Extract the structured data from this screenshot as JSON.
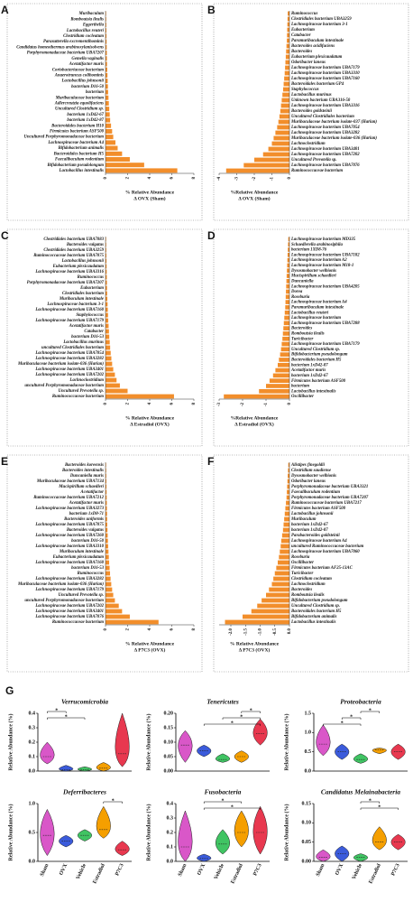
{
  "chart_data": [
    {
      "type": "bar",
      "panel_label": "A",
      "color": "#f28e2b",
      "categories": [
        "Muribaculum",
        "Romboutsia ilealis",
        "Eggerthella",
        "Lactobacillus reuteri",
        "Clostridium cocleatum",
        "Parasutterella excrementihominis",
        "Candidatus homeothermus arabinoxylanisolvens",
        "Porphyromonadaceae bacterium UBA7207",
        "Gemella vaginalis",
        "Acetatifactor muris",
        "Coriobacteriaceae bacterium",
        "Anaerotruncus colihominis",
        "Lactobacillus johnsonii",
        "bacterium D16-50",
        "bacterium",
        "Muribaculaceae bacterium",
        "Adlercreutzia equolifaciens",
        "Uncultured Clostridium sp.",
        "bacterium 1xD42-67",
        "bacterium 1xD42-87",
        "Bacteroidales bacterium H10",
        "Firmicutes bacterium ASF500",
        "Uncultured Porphyromonadaceae bacterium",
        "Lachnospiraceae bacterium A4",
        "Bifidobacterium animalis",
        "Bacteroidales bacterium H5",
        "Faecalibaculum rodentium",
        "Bifidobacterium pseudolongum",
        "Lactobacillus intestinalis"
      ],
      "values": [
        0.05,
        0.06,
        0.07,
        0.08,
        0.09,
        0.1,
        0.11,
        0.12,
        0.13,
        0.14,
        0.16,
        0.18,
        0.2,
        0.22,
        0.24,
        0.27,
        0.3,
        0.34,
        0.38,
        0.42,
        0.5,
        0.6,
        0.7,
        0.9,
        1.1,
        1.5,
        2.2,
        3.5,
        6.5
      ],
      "xlim": [
        0,
        8
      ],
      "xticks": [
        0,
        2,
        4,
        6,
        8
      ],
      "xlabel_lines": [
        "% Relative Abundance",
        "Δ OVX (Sham)"
      ]
    },
    {
      "type": "bar",
      "panel_label": "B",
      "color": "#f28e2b",
      "categories": [
        "Ruminococcus",
        "Clostridiales bacterium UBA3259",
        "Lachnospiraceae bacterium 3-1",
        "Eubacterium",
        "Catabacter",
        "Paramuribaculum intestinale",
        "Bacteroides acidifaciens",
        "Bacteroides",
        "Eubacterium plexicaudatum",
        "Odoribacter laneus",
        "Lachnospiraceae bacterium UBA7179",
        "Lachnospiraceae bacterium UBA3310",
        "Lachnospiraceae bacterium UBA7160",
        "Bacteroidales bacterium GP4",
        "Staphylococcus",
        "Lactobacillus murinus",
        "Unknown bacterium UBA316-50",
        "Lachnospiraceae bacterium UBA3316",
        "Bacteroides goldsteinii",
        "Uncultured Clostridiales bacterium",
        "Muribaculaceae bacterium isolate-037 (Harlan)",
        "Lachnospiraceae bacterium UBA7054",
        "Lachnospiraceae bacterium UBA3282",
        "Muribaculaceae bacterium isolate-036 (Harlan)",
        "Lachnoclostridium",
        "Lachnospiraceae bacterium UBA3401",
        "Lachnospiraceae bacterium UBA7202",
        "Uncultured Prevotella sp.",
        "Lachnospiraceae bacterium UBA7076",
        "Ruminococcaceae bacterium"
      ],
      "values": [
        -0.1,
        -0.11,
        -0.12,
        -0.13,
        -0.14,
        -0.15,
        -0.17,
        -0.19,
        -0.21,
        -0.23,
        -0.25,
        -0.27,
        -0.3,
        -0.33,
        -0.36,
        -0.4,
        -0.44,
        -0.48,
        -0.52,
        -0.57,
        -0.63,
        -0.7,
        -0.8,
        -0.9,
        -1.0,
        -1.2,
        -1.5,
        -2.0,
        -2.6,
        -3.6
      ],
      "xlim": [
        -4,
        0
      ],
      "xticks": [
        -4,
        -3,
        -2,
        -1,
        0
      ],
      "xlabel_lines": [
        "%Relative Abundance",
        "Δ OVX (Sham)"
      ]
    },
    {
      "type": "bar",
      "panel_label": "C",
      "color": "#f28e2b",
      "categories": [
        "Clostridiales bacterium UBA7083",
        "Bacteroides vulgatus",
        "Clostridiales bacterium UBA3259",
        "Ruminococcaceae bacterium UBA7075",
        "Lactobacillus johnsonii",
        "Eubacterium plexicaudatum",
        "Lachnospiraceae bacterium UBA3316",
        "Ruminococcus",
        "Porphyromonadaceae bacterium UBA7207",
        "Eubacterium",
        "Clostridiales bacterium",
        "Muribaculum intestinale",
        "Lachnospiraceae bacterium 3-1",
        "Lachnospiraceae bacterium UBA7160",
        "Staphylococcus",
        "Lachnospiraceae bacterium UBA7179",
        "Acetatifactor muris",
        "Catabacter",
        "bacterium D16-53",
        "Lactobacillus murinus",
        "uncultured Clostridiales bacterium",
        "Lachnospiraceae bacterium UBA7054",
        "Lachnospiraceae bacterium UBA3282",
        "Muribaculaceae bacterium isolate-036 (Harlan)",
        "Lachnospiraceae bacterium UBA3401",
        "Lachnospiraceae bacterium UBA7202",
        "Lachnoclostridium",
        "uncultured Porphyromonadaceae bacterium",
        "Uncultured Prevotella sp.",
        "Ruminococcaceae bacterium"
      ],
      "values": [
        0.05,
        0.06,
        0.07,
        0.08,
        0.09,
        0.1,
        0.11,
        0.12,
        0.13,
        0.14,
        0.15,
        0.17,
        0.19,
        0.21,
        0.23,
        0.25,
        0.28,
        0.31,
        0.34,
        0.38,
        0.42,
        0.47,
        0.53,
        0.6,
        0.7,
        0.85,
        1.0,
        1.3,
        2.0,
        6.2
      ],
      "xlim": [
        0,
        8
      ],
      "xticks": [
        0,
        2,
        4,
        6,
        8
      ],
      "xlabel_lines": [
        "% Relative Abundance",
        "Δ Estradiol (OVX)"
      ]
    },
    {
      "type": "bar",
      "panel_label": "D",
      "color": "#f28e2b",
      "categories": [
        "Lachnospiraceae bacterium MD335",
        "Schaedlerella arabinosiphila",
        "bacterium 1XD8-76",
        "Lachnospiraceae bacterium UBA7182",
        "Lachnospiraceae bacterium A2",
        "Lachnospiraceae bacterium M18-1",
        "Dysosmobacter welbionis",
        "Mucispirillum schaedleri",
        "Duncaniella",
        "Lachnospiraceae bacterium UBA4205",
        "Dorea",
        "Roseburia",
        "Lachnospiraceae bacterium A4",
        "Paramuribaculum intestinale",
        "Lactobacillus reuteri",
        "Lachnospiraceae bacterium",
        "Lachnospiraceae bacterium UBA7288",
        "Bacteroides",
        "Romboutsia ilealis",
        "Turicibacter",
        "Lachnospiraceae bacterium UBA7179",
        "Uncultured Clostridium sp.",
        "Bifidobacterium pseudolongum",
        "Bacteroidales bacterium H5",
        "bacterium 1xD42-87",
        "Acetatifactor muris",
        "bacterium 1xD42-67",
        "Firmicutes bacterium ASF500",
        "bacterium",
        "Lactobacillus intestinalis",
        "Oscillibacter"
      ],
      "values": [
        -0.05,
        -0.06,
        -0.07,
        -0.08,
        -0.09,
        -0.1,
        -0.11,
        -0.12,
        -0.13,
        -0.14,
        -0.15,
        -0.16,
        -0.17,
        -0.18,
        -0.2,
        -0.22,
        -0.24,
        -0.26,
        -0.28,
        -0.3,
        -0.33,
        -0.36,
        -0.4,
        -0.45,
        -0.5,
        -0.6,
        -0.7,
        -0.85,
        -1.0,
        -1.3,
        -2.8
      ],
      "xlim": [
        -3,
        0
      ],
      "xticks": [
        -3,
        -2,
        -1,
        0
      ],
      "xlabel_lines": [
        "%Relative Abundance",
        "Δ Estradiol (OVX)"
      ]
    },
    {
      "type": "bar",
      "panel_label": "E",
      "color": "#f28e2b",
      "categories": [
        "Bacteroides koreensis",
        "Bacteroides intestinalis",
        "Duncaniella muris",
        "Muribaculaceae bacterium UBA7134",
        "Mucispirillum schaedleri",
        "Acetatifactor",
        "Ruminococcaceae bacterium UBA7212",
        "Acetatifactor muris",
        "Lachnospiraceae bacterium UBA3273",
        "bacterium 1xD8-71",
        "Bacteroides uniformis",
        "Lachnospiraceae bacterium UBA7075",
        "Bacteroides vulgatus",
        "Lachnospiraceae bacterium UBA7260",
        "bacterium D16-50",
        "Lachnospiraceae bacterium UBA3310",
        "Muribaculum intestinale",
        "Eubacterium plexicaudatum",
        "Lachnospiraceae bacterium UBA7160",
        "bacterium D16-53",
        "Ruminococcus",
        "Lachnospiraceae bacterium UBA3282",
        "Muribaculaceae bacterium isolate-036 (Harlan)",
        "Lachnospiraceae bacterium UBA7179",
        "Uncultured Prevotella sp.",
        "uncultured Porphyromonadaceae bacterium",
        "Lachnospiraceae bacterium UBA7202",
        "Lachnospiraceae bacterium UBA3401",
        "Lachnospiraceae bacterium UBA7076",
        "Ruminococcaceae bacterium"
      ],
      "values": [
        0.05,
        0.06,
        0.07,
        0.08,
        0.09,
        0.1,
        0.11,
        0.12,
        0.13,
        0.14,
        0.15,
        0.16,
        0.18,
        0.2,
        0.22,
        0.24,
        0.27,
        0.3,
        0.33,
        0.37,
        0.41,
        0.46,
        0.52,
        0.6,
        0.7,
        0.85,
        1.2,
        1.5,
        2.2,
        4.8
      ],
      "xlim": [
        0,
        8
      ],
      "xticks": [
        0,
        2,
        4,
        6,
        8
      ],
      "xlabel_lines": [
        "% Relative Abundance",
        "Δ P7C3 (OVX)"
      ]
    },
    {
      "type": "bar",
      "panel_label": "F",
      "color": "#f28e2b",
      "categories": [
        "Alistipes finegoldii",
        "Clostridium saudiense",
        "Dysosmobacter welbionis",
        "Odoribacter laneus",
        "Porphyromonadaceae bacterium UBA3321",
        "Faecalibaculum rodentium",
        "Porphyromonadaceae bacterium UBA7207",
        "Ruminococcaceae bacterium UBA7217",
        "Firmicutes bacterium ASF500",
        "Lactobacillus johnsonii",
        "Muribaculum",
        "bacterium 1xD42-67",
        "bacterium 1xD42-87",
        "Parabacteroides goldsteinii",
        "Lachnospiraceae bacterium A4",
        "uncultured Ruminococcaceae bacterium",
        "Lachnospiraceae bacterium UBA7060",
        "Roseburia",
        "Oscillibacter",
        "Firmicutes bacterium AF25-13AC",
        "Turicibacter",
        "Clostridium cocleatum",
        "Lachnoclostridium",
        "Bacteroides",
        "Romboutsia ilealis",
        "Bifidobacterium pseudolongum",
        "Uncultured Clostridium sp.",
        "Bacteroidales bacterium H5",
        "Bifidobacterium animalis",
        "Lactobacillus intestinalis"
      ],
      "values": [
        -0.04,
        -0.05,
        -0.06,
        -0.07,
        -0.08,
        -0.09,
        -0.1,
        -0.12,
        -0.14,
        -0.16,
        -0.18,
        -0.2,
        -0.22,
        -0.25,
        -0.28,
        -0.3,
        -0.33,
        -0.36,
        -0.4,
        -0.45,
        -0.5,
        -0.55,
        -0.6,
        -0.7,
        -0.8,
        -0.95,
        -1.1,
        -1.3,
        -1.6,
        -2.2
      ],
      "xlim": [
        -2.4,
        0
      ],
      "xticks": [
        {
          "value": -2,
          "label": "-2.0"
        },
        -1.5,
        {
          "value": -1,
          "label": "-1.0"
        },
        -0.5,
        {
          "value": 0,
          "label": "0.0"
        }
      ],
      "xlabel_lines": [
        "% Relative Abundance",
        "Δ P7C3 (OVX)"
      ]
    },
    {
      "type": "violin",
      "panel_label": "G",
      "y_label": "Relative Abundance (%)",
      "groups": [
        "Sham",
        "OVX",
        "Vehicle",
        "Estradiol",
        "P7C3"
      ],
      "colors": [
        "#d957c8",
        "#3b5bdb",
        "#40c463",
        "#f59f00",
        "#e8384f"
      ],
      "plots": [
        {
          "title": "Verrucomicrobia",
          "ylim": [
            0,
            0.4
          ],
          "yticks": [
            {
              "value": 0,
              "label": "0.0"
            },
            0.1,
            0.2,
            0.3,
            0.4
          ],
          "min": [
            0.05,
            0,
            0,
            0,
            0.03
          ],
          "median": [
            0.1,
            0.01,
            0.01,
            0.02,
            0.12
          ],
          "max": [
            0.2,
            0.04,
            0.03,
            0.06,
            0.4
          ],
          "significance": [
            {
              "from": 0,
              "to": 1,
              "label": "*"
            },
            {
              "from": 0,
              "to": 2,
              "label": "*"
            }
          ]
        },
        {
          "title": "Tenericutes",
          "ylim": [
            0,
            0.2
          ],
          "yticks": [
            {
              "value": 0,
              "label": "0.00"
            },
            0.05,
            {
              "value": 0.1,
              "label": "0.10"
            },
            0.15,
            {
              "value": 0.2,
              "label": "0.20"
            }
          ],
          "min": [
            0.03,
            0.05,
            0.03,
            0.03,
            0.09
          ],
          "median": [
            0.09,
            0.07,
            0.04,
            0.05,
            0.13
          ],
          "max": [
            0.14,
            0.09,
            0.06,
            0.07,
            0.18
          ],
          "significance": [
            {
              "from": 3,
              "to": 4,
              "label": "*"
            },
            {
              "from": 2,
              "to": 4,
              "label": "*"
            },
            {
              "from": 1,
              "to": 4,
              "label": "*"
            }
          ]
        },
        {
          "title": "Proteobacteria",
          "ylim": [
            0,
            1.5
          ],
          "yticks": [
            {
              "value": 0,
              "label": "0.0"
            },
            0.5,
            {
              "value": 1,
              "label": "1.0"
            },
            1.5
          ],
          "min": [
            0.4,
            0.3,
            0.2,
            0.45,
            0.3
          ],
          "median": [
            0.7,
            0.5,
            0.3,
            0.55,
            0.5
          ],
          "max": [
            1.2,
            0.7,
            0.45,
            0.6,
            0.7
          ],
          "significance": [
            {
              "from": 2,
              "to": 3,
              "label": "*"
            },
            {
              "from": 1,
              "to": 2,
              "label": "*"
            },
            {
              "from": 0,
              "to": 2,
              "label": "*"
            }
          ]
        },
        {
          "title": "Deferribacteres",
          "ylim": [
            0,
            1
          ],
          "yticks": [
            {
              "value": 0,
              "label": "0.0"
            },
            0.5,
            {
              "value": 1,
              "label": "1.0"
            }
          ],
          "min": [
            0.1,
            0.25,
            0.35,
            0.4,
            0.1
          ],
          "median": [
            0.45,
            0.35,
            0.45,
            0.55,
            0.2
          ],
          "max": [
            0.9,
            0.45,
            0.55,
            0.95,
            0.35
          ],
          "significance": [
            {
              "from": 3,
              "to": 4,
              "label": "*"
            }
          ]
        },
        {
          "title": "Fusobacteria",
          "ylim": [
            0,
            0.4
          ],
          "yticks": [
            {
              "value": 0,
              "label": "0.0"
            },
            0.1,
            0.2,
            0.3,
            0.4
          ],
          "min": [
            0,
            0,
            0.05,
            0.1,
            0.05
          ],
          "median": [
            0.1,
            0.02,
            0.12,
            0.2,
            0.2
          ],
          "max": [
            0.35,
            0.05,
            0.22,
            0.35,
            0.38
          ],
          "significance": [
            {
              "from": 1,
              "to": 3,
              "label": "*"
            },
            {
              "from": 1,
              "to": 4,
              "label": "*"
            }
          ]
        },
        {
          "title": "Candidatus Melainabacteria",
          "ylim": [
            0,
            0.15
          ],
          "yticks": [
            {
              "value": 0,
              "label": "0.00"
            },
            0.05,
            {
              "value": 0.1,
              "label": "0.10"
            },
            0.15
          ],
          "min": [
            0,
            0,
            0,
            0.03,
            0.03
          ],
          "median": [
            0.01,
            0.02,
            0.01,
            0.05,
            0.05
          ],
          "max": [
            0.03,
            0.04,
            0.02,
            0.09,
            0.07
          ],
          "significance": [
            {
              "from": 2,
              "to": 3,
              "label": "*"
            },
            {
              "from": 2,
              "to": 4,
              "label": "*"
            }
          ]
        }
      ]
    }
  ]
}
